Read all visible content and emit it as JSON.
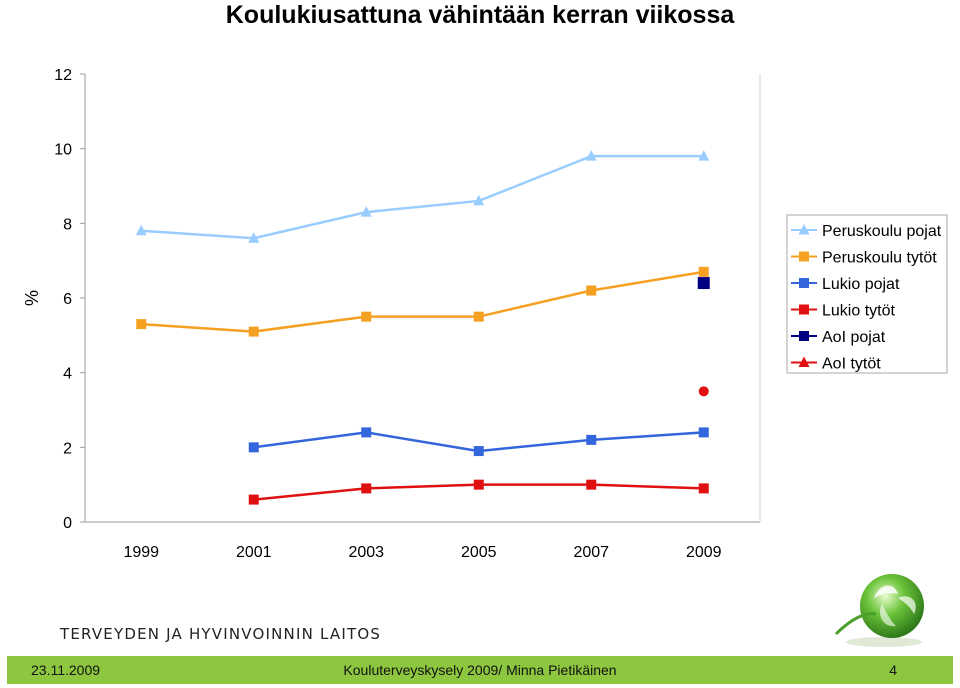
{
  "chart_data": {
    "type": "line",
    "title": "Koulukiusattuna vähintään kerran viikossa",
    "ylabel": "%",
    "xlabel": "",
    "ylim": [
      0,
      12
    ],
    "yticks": [
      0,
      2,
      4,
      6,
      8,
      10,
      12
    ],
    "categories": [
      "1999",
      "2001",
      "2003",
      "2005",
      "2007",
      "2009"
    ],
    "grid": false,
    "legend": "right",
    "series": [
      {
        "name": "Peruskoulu pojat",
        "color": "#99ccff",
        "marker": "triangle",
        "values": [
          7.8,
          7.6,
          8.3,
          8.6,
          9.8,
          9.8
        ]
      },
      {
        "name": "Peruskoulu tytöt",
        "color": "#f5a021",
        "marker": "square",
        "values": [
          5.3,
          5.1,
          5.5,
          5.5,
          6.2,
          6.7
        ]
      },
      {
        "name": "Lukio pojat",
        "color": "#3366dd",
        "marker": "square",
        "values": [
          null,
          2.0,
          2.4,
          1.9,
          2.2,
          2.4
        ]
      },
      {
        "name": "Lukio tytöt",
        "color": "#e01010",
        "marker": "square",
        "values": [
          null,
          0.6,
          0.9,
          1.0,
          1.0,
          0.9
        ]
      },
      {
        "name": "AoI pojat",
        "color": "#000080",
        "marker": "square",
        "values": [
          null,
          null,
          null,
          null,
          null,
          6.4
        ]
      },
      {
        "name": "AoI tytöt",
        "color": "#e01010",
        "marker": "triangle",
        "values": [
          null,
          null,
          null,
          null,
          null,
          3.5
        ]
      }
    ]
  },
  "footer": {
    "organization": "TERVEYDEN JA HYVINVOINNIN LAITOS",
    "date": "23.11.2009",
    "center_text": "Kouluterveyskysely 2009/ Minna Pietikäinen",
    "page_number": "4"
  },
  "colors": {
    "footer_bar": "#8dc63f",
    "logo_green": "#4aa02c"
  },
  "icons": {
    "logo": "green-leaf-globe-icon"
  }
}
